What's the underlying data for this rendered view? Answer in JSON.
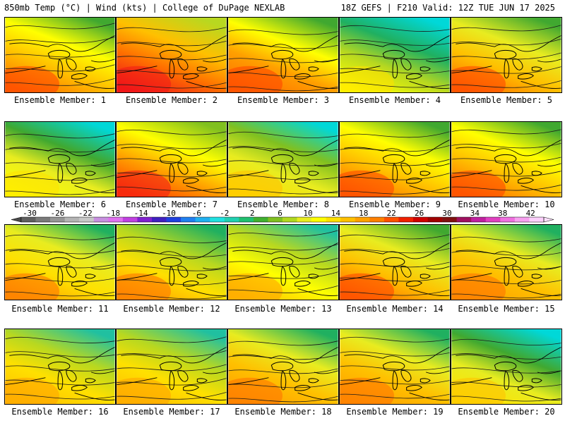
{
  "header": {
    "left": "850mb Temp (°C) | Wind (kts) | College of DuPage NEXLAB",
    "right": "18Z GEFS | F210 Valid: 12Z TUE JUN 17 2025"
  },
  "member_label_prefix": "Ensemble Member: ",
  "members": [
    {
      "number": "1",
      "warmth": 0.62,
      "label": "Ensemble Member: 1"
    },
    {
      "number": "2",
      "warmth": 0.78,
      "label": "Ensemble Member: 2"
    },
    {
      "number": "3",
      "warmth": 0.66,
      "label": "Ensemble Member: 3"
    },
    {
      "number": "4",
      "warmth": 0.3,
      "label": "Ensemble Member: 4"
    },
    {
      "number": "5",
      "warmth": 0.6,
      "label": "Ensemble Member: 5"
    },
    {
      "number": "6",
      "warmth": 0.35,
      "label": "Ensemble Member: 6"
    },
    {
      "number": "7",
      "warmth": 0.68,
      "label": "Ensemble Member: 7"
    },
    {
      "number": "8",
      "warmth": 0.4,
      "label": "Ensemble Member: 8"
    },
    {
      "number": "9",
      "warmth": 0.62,
      "label": "Ensemble Member: 9"
    },
    {
      "number": "10",
      "warmth": 0.65,
      "label": "Ensemble Member: 10"
    },
    {
      "number": "11",
      "warmth": 0.55,
      "label": "Ensemble Member: 11"
    },
    {
      "number": "12",
      "warmth": 0.52,
      "label": "Ensemble Member: 12"
    },
    {
      "number": "13",
      "warmth": 0.48,
      "label": "Ensemble Member: 13"
    },
    {
      "number": "14",
      "warmth": 0.6,
      "label": "Ensemble Member: 14"
    },
    {
      "number": "15",
      "warmth": 0.58,
      "label": "Ensemble Member: 15"
    },
    {
      "number": "16",
      "warmth": 0.5,
      "label": "Ensemble Member: 16"
    },
    {
      "number": "17",
      "warmth": 0.5,
      "label": "Ensemble Member: 17"
    },
    {
      "number": "18",
      "warmth": 0.58,
      "label": "Ensemble Member: 18"
    },
    {
      "number": "19",
      "warmth": 0.58,
      "label": "Ensemble Member: 19"
    },
    {
      "number": "20",
      "warmth": 0.38,
      "label": "Ensemble Member: 20"
    }
  ],
  "colorbar": {
    "ticks": [
      "-30",
      "-26",
      "-22",
      "-18",
      "-14",
      "-10",
      "-6",
      "-2",
      "2",
      "6",
      "10",
      "14",
      "18",
      "22",
      "26",
      "30",
      "34",
      "38",
      "42"
    ],
    "colors": [
      "#5f5f5f",
      "#7a7a7a",
      "#969696",
      "#b4b4b4",
      "#c8c8c8",
      "#c890e0",
      "#e070f0",
      "#c040e0",
      "#8020d0",
      "#4020c0",
      "#2040e0",
      "#2080f0",
      "#20b0f0",
      "#20e0e0",
      "#20d0b0",
      "#20c070",
      "#40b030",
      "#80c020",
      "#b0d820",
      "#e8ec20",
      "#ffff00",
      "#ffe000",
      "#ffc000",
      "#ffa000",
      "#ff8000",
      "#ff5000",
      "#f02000",
      "#d00000",
      "#a00000",
      "#801010",
      "#a01060",
      "#c020a0",
      "#e040c0",
      "#f070e0",
      "#f8a0f0",
      "#fcd0fc"
    ]
  }
}
